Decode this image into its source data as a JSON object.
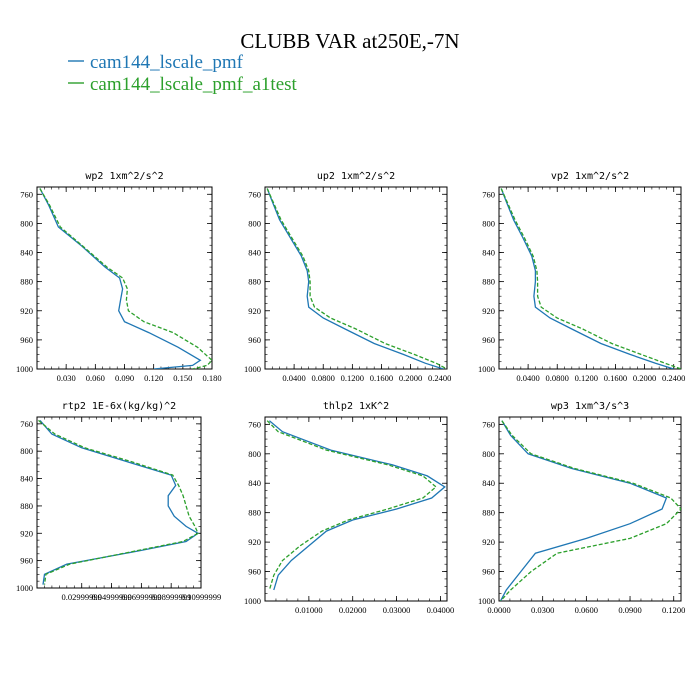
{
  "figure": {
    "title": "CLUBB VAR at250E,-7N",
    "legend": [
      {
        "label": "cam144_lscale_pmf",
        "color": "#1f77b4",
        "dash": "solid"
      },
      {
        "label": "cam144_lscale_pmf_a1test",
        "color": "#2ca02c",
        "dash": "dashed"
      }
    ],
    "line_colors": [
      "#1f77b4",
      "#2ca02c"
    ]
  },
  "chart_data": [
    {
      "type": "line",
      "title": "wp2  1xm^2/s^2",
      "xlim": [
        0,
        0.18
      ],
      "ylim": [
        1000,
        750
      ],
      "xticks": [
        "0.030",
        "0.060",
        "0.090",
        "0.120",
        "0.150",
        "0.180"
      ],
      "xtick_values": [
        0.03,
        0.06,
        0.09,
        0.12,
        0.15,
        0.18
      ],
      "yticks": [
        "760",
        "800",
        "840",
        "880",
        "920",
        "960",
        "1000"
      ],
      "ytick_values": [
        760,
        800,
        840,
        880,
        920,
        960,
        1000
      ],
      "series": [
        {
          "name": "cam144_lscale_pmf",
          "x": [
            0.003,
            0.012,
            0.022,
            0.045,
            0.07,
            0.085,
            0.088,
            0.086,
            0.084,
            0.09,
            0.115,
            0.145,
            0.168,
            0.16,
            0.12
          ],
          "y": [
            752,
            775,
            805,
            830,
            860,
            875,
            890,
            905,
            920,
            935,
            950,
            970,
            988,
            995,
            1000
          ]
        },
        {
          "name": "cam144_lscale_pmf_a1test",
          "x": [
            0.003,
            0.013,
            0.024,
            0.046,
            0.072,
            0.088,
            0.093,
            0.092,
            0.094,
            0.11,
            0.14,
            0.165,
            0.18,
            0.175,
            0.16
          ],
          "y": [
            752,
            775,
            805,
            830,
            860,
            875,
            890,
            905,
            920,
            935,
            950,
            970,
            988,
            995,
            1000
          ]
        }
      ]
    },
    {
      "type": "line",
      "title": "up2  1xm^2/s^2",
      "xlim": [
        0,
        0.25
      ],
      "ylim": [
        1000,
        750
      ],
      "xticks": [
        "0.0400",
        "0.0800",
        "0.1200",
        "0.1600",
        "0.2000",
        "0.2400"
      ],
      "xtick_values": [
        0.04,
        0.08,
        0.12,
        0.16,
        0.2,
        0.24
      ],
      "yticks": [
        "760",
        "800",
        "840",
        "880",
        "920",
        "960",
        "1000"
      ],
      "ytick_values": [
        760,
        800,
        840,
        880,
        920,
        960,
        1000
      ],
      "series": [
        {
          "name": "cam144_lscale_pmf",
          "x": [
            0.003,
            0.01,
            0.02,
            0.035,
            0.05,
            0.058,
            0.06,
            0.058,
            0.06,
            0.08,
            0.11,
            0.15,
            0.19,
            0.22,
            0.245
          ],
          "y": [
            752,
            770,
            795,
            820,
            845,
            865,
            880,
            900,
            915,
            930,
            945,
            965,
            980,
            992,
            1000
          ]
        },
        {
          "name": "cam144_lscale_pmf_a1test",
          "x": [
            0.003,
            0.011,
            0.022,
            0.037,
            0.052,
            0.06,
            0.062,
            0.062,
            0.068,
            0.09,
            0.125,
            0.165,
            0.205,
            0.235,
            0.25
          ],
          "y": [
            752,
            770,
            795,
            820,
            845,
            865,
            880,
            900,
            915,
            930,
            945,
            965,
            980,
            992,
            1000
          ]
        }
      ]
    },
    {
      "type": "line",
      "title": "vp2  1xm^2/s^2",
      "xlim": [
        0,
        0.25
      ],
      "ylim": [
        1000,
        750
      ],
      "xticks": [
        "0.0400",
        "0.0800",
        "0.1200",
        "0.1600",
        "0.2000",
        "0.2400"
      ],
      "xtick_values": [
        0.04,
        0.08,
        0.12,
        0.16,
        0.2,
        0.24
      ],
      "yticks": [
        "760",
        "800",
        "840",
        "880",
        "920",
        "960",
        "1000"
      ],
      "ytick_values": [
        760,
        800,
        840,
        880,
        920,
        960,
        1000
      ],
      "series": [
        {
          "name": "cam144_lscale_pmf",
          "x": [
            0.003,
            0.01,
            0.02,
            0.033,
            0.045,
            0.05,
            0.05,
            0.048,
            0.05,
            0.07,
            0.1,
            0.14,
            0.18,
            0.215,
            0.24
          ],
          "y": [
            752,
            770,
            795,
            820,
            845,
            865,
            880,
            900,
            915,
            930,
            945,
            965,
            980,
            992,
            1000
          ]
        },
        {
          "name": "cam144_lscale_pmf_a1test",
          "x": [
            0.003,
            0.011,
            0.022,
            0.035,
            0.047,
            0.052,
            0.053,
            0.053,
            0.058,
            0.08,
            0.115,
            0.155,
            0.195,
            0.228,
            0.25
          ],
          "y": [
            752,
            770,
            795,
            820,
            845,
            865,
            880,
            900,
            915,
            930,
            945,
            965,
            980,
            992,
            1000
          ]
        }
      ]
    },
    {
      "type": "line",
      "title": "rtp2  1E-6x(kg/kg)^2",
      "xlim": [
        0,
        0.11
      ],
      "ylim": [
        1000,
        750
      ],
      "xticks": [
        "0.02999999",
        "0.04999999",
        "0.06999999",
        "0.08999999",
        "0.10999999"
      ],
      "xtick_values": [
        0.03,
        0.05,
        0.07,
        0.09,
        0.11
      ],
      "yticks": [
        "760",
        "800",
        "840",
        "880",
        "920",
        "960",
        "1000"
      ],
      "ytick_values": [
        760,
        800,
        840,
        880,
        920,
        960,
        1000
      ],
      "series": [
        {
          "name": "cam144_lscale_pmf",
          "x": [
            0.002,
            0.01,
            0.03,
            0.06,
            0.09,
            0.093,
            0.088,
            0.088,
            0.092,
            0.1,
            0.108,
            0.1,
            0.07,
            0.02,
            0.005,
            0.004
          ],
          "y": [
            755,
            775,
            795,
            815,
            835,
            850,
            865,
            880,
            895,
            910,
            920,
            932,
            945,
            965,
            980,
            995
          ]
        },
        {
          "name": "cam144_lscale_pmf_a1test",
          "x": [
            0.001,
            0.012,
            0.032,
            0.063,
            0.091,
            0.095,
            0.098,
            0.1,
            0.102,
            0.106,
            0.108,
            0.098,
            0.068,
            0.022,
            0.006,
            0.005
          ],
          "y": [
            755,
            775,
            795,
            815,
            835,
            850,
            865,
            880,
            895,
            910,
            920,
            932,
            945,
            965,
            980,
            995
          ]
        }
      ]
    },
    {
      "type": "line",
      "title": "thlp2  1xK^2",
      "xlim": [
        0,
        0.0415
      ],
      "ylim": [
        1000,
        750
      ],
      "xticks": [
        "0.01000",
        "0.02000",
        "0.03000",
        "0.04000"
      ],
      "xtick_values": [
        0.01,
        0.02,
        0.03,
        0.04
      ],
      "yticks": [
        "760",
        "800",
        "840",
        "880",
        "920",
        "960",
        "1000"
      ],
      "ytick_values": [
        760,
        800,
        840,
        880,
        920,
        960,
        1000
      ],
      "series": [
        {
          "name": "cam144_lscale_pmf",
          "x": [
            0.001,
            0.004,
            0.015,
            0.029,
            0.037,
            0.041,
            0.038,
            0.03,
            0.02,
            0.014,
            0.01,
            0.006,
            0.003,
            0.002
          ],
          "y": [
            755,
            770,
            795,
            815,
            830,
            845,
            860,
            875,
            890,
            905,
            925,
            945,
            965,
            985
          ]
        },
        {
          "name": "cam144_lscale_pmf_a1test",
          "x": [
            0.0005,
            0.003,
            0.014,
            0.028,
            0.036,
            0.039,
            0.036,
            0.028,
            0.019,
            0.013,
            0.008,
            0.004,
            0.002,
            0.001
          ],
          "y": [
            755,
            770,
            795,
            815,
            830,
            845,
            860,
            875,
            890,
            905,
            925,
            945,
            965,
            985
          ]
        }
      ]
    },
    {
      "type": "line",
      "title": "wp3  1xm^3/s^3",
      "xlim": [
        0,
        0.125
      ],
      "ylim": [
        1000,
        750
      ],
      "xticks": [
        "0.0000",
        "0.0300",
        "0.0600",
        "0.0900",
        "0.1200"
      ],
      "xtick_values": [
        0,
        0.03,
        0.06,
        0.09,
        0.12
      ],
      "yticks": [
        "760",
        "800",
        "840",
        "880",
        "920",
        "960",
        "1000"
      ],
      "ytick_values": [
        760,
        800,
        840,
        880,
        920,
        960,
        1000
      ],
      "series": [
        {
          "name": "cam144_lscale_pmf",
          "x": [
            0.002,
            0.008,
            0.02,
            0.05,
            0.09,
            0.115,
            0.112,
            0.09,
            0.06,
            0.025,
            0.015,
            0.005,
            0.001
          ],
          "y": [
            755,
            775,
            800,
            820,
            840,
            860,
            875,
            895,
            915,
            935,
            960,
            985,
            1000
          ]
        },
        {
          "name": "cam144_lscale_pmf_a1test",
          "x": [
            0.002,
            0.009,
            0.022,
            0.052,
            0.092,
            0.118,
            0.125,
            0.115,
            0.09,
            0.04,
            0.022,
            0.008,
            0.001
          ],
          "y": [
            755,
            775,
            800,
            820,
            840,
            860,
            875,
            895,
            915,
            935,
            960,
            985,
            1000
          ]
        }
      ]
    }
  ]
}
